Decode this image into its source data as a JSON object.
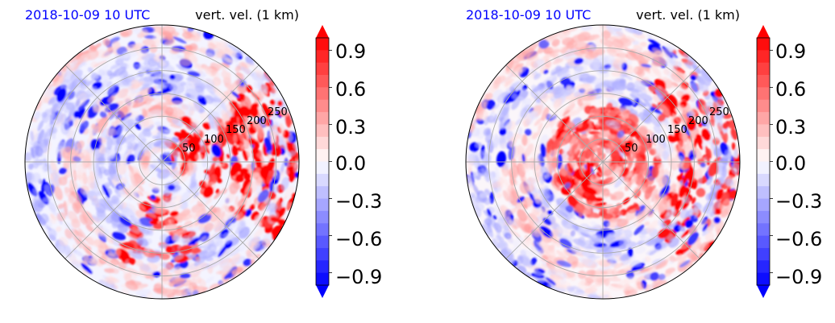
{
  "chart_data": [
    {
      "type": "heatmap",
      "projection": "polar",
      "title_left": "2018-10-09 10 UTC",
      "title_left_color": "#0000ff",
      "title_right": "vert. vel. (1 km)",
      "radial_ticks": [
        "50",
        "100",
        "150",
        "200",
        "250"
      ],
      "radial_tick_values": [
        50,
        100,
        150,
        200,
        250
      ],
      "r_max": 300,
      "angular_gridlines_deg": [
        0,
        45,
        90,
        135,
        180,
        225,
        270,
        315
      ],
      "grid": true,
      "colorbar": {
        "ticks": [
          "−0.9",
          "−0.6",
          "−0.3",
          "0.0",
          "0.3",
          "0.6",
          "0.9"
        ],
        "tick_values": [
          -0.9,
          -0.6,
          -0.3,
          0.0,
          0.3,
          0.6,
          0.9
        ],
        "vmin": -1.0,
        "vmax": 1.0,
        "extend": "both",
        "cmap": "bwr",
        "low_color": "#0000ff",
        "mid_color": "#ffffff",
        "high_color": "#ff0000"
      }
    },
    {
      "type": "heatmap",
      "projection": "polar",
      "title_left": "2018-10-09 10 UTC",
      "title_left_color": "#0000ff",
      "title_right": "vert. vel. (1 km)",
      "radial_ticks": [
        "50",
        "100",
        "150",
        "200",
        "250"
      ],
      "radial_tick_values": [
        50,
        100,
        150,
        200,
        250
      ],
      "r_max": 300,
      "angular_gridlines_deg": [
        0,
        45,
        90,
        135,
        180,
        225,
        270,
        315
      ],
      "grid": true,
      "colorbar": {
        "ticks": [
          "−0.9",
          "−0.6",
          "−0.3",
          "0.0",
          "0.3",
          "0.6",
          "0.9"
        ],
        "tick_values": [
          -0.9,
          -0.6,
          -0.3,
          0.0,
          0.3,
          0.6,
          0.9
        ],
        "vmin": -1.0,
        "vmax": 1.0,
        "extend": "both",
        "cmap": "bwr",
        "low_color": "#0000ff",
        "mid_color": "#ffffff",
        "high_color": "#ff0000"
      }
    }
  ]
}
